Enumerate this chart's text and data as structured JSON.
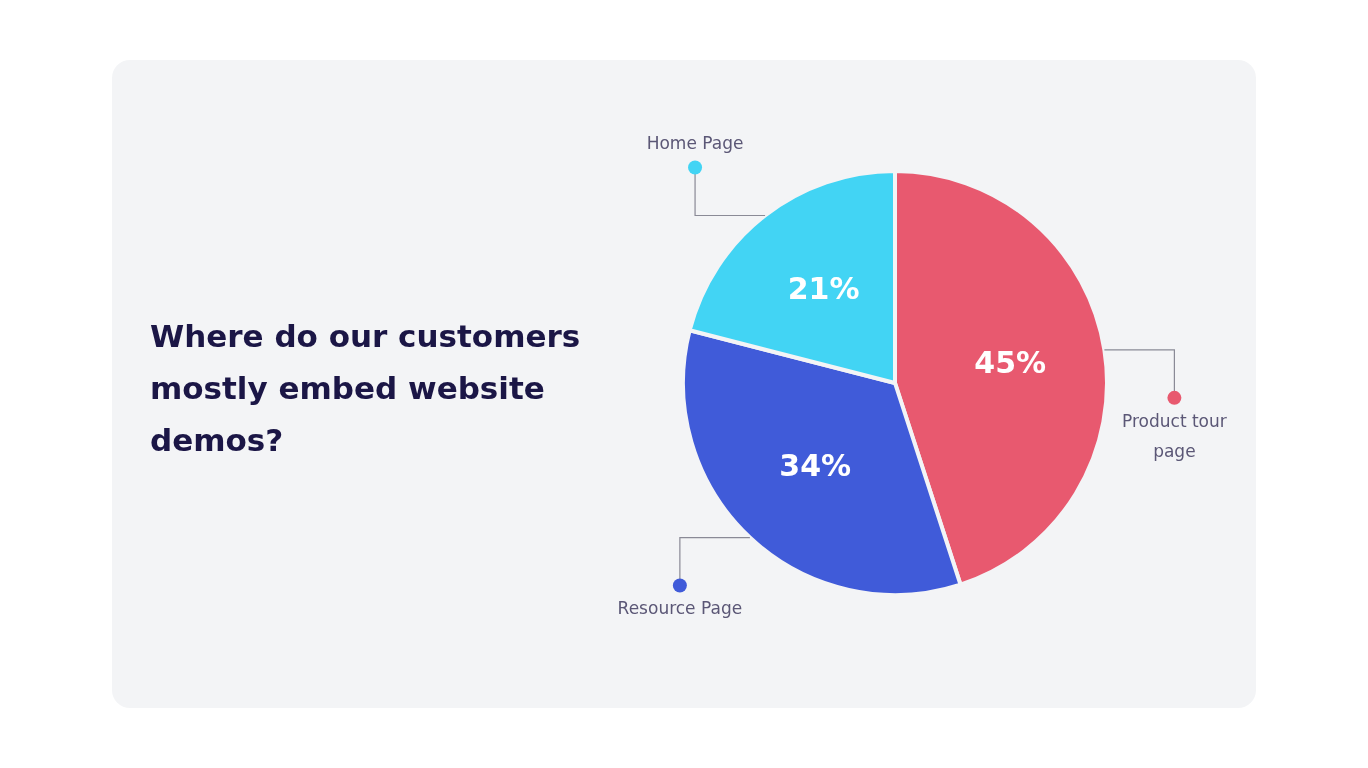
{
  "chart_data": {
    "type": "pie",
    "title": "Where do our customers mostly embed website demos?",
    "categories": [
      "Product tour page",
      "Resource Page",
      "Home Page"
    ],
    "values": [
      45,
      34,
      21
    ],
    "colors": [
      "#e8596f",
      "#405bd9",
      "#42d4f4"
    ],
    "value_labels": [
      "45%",
      "34%",
      "21%"
    ],
    "legend": "right"
  }
}
